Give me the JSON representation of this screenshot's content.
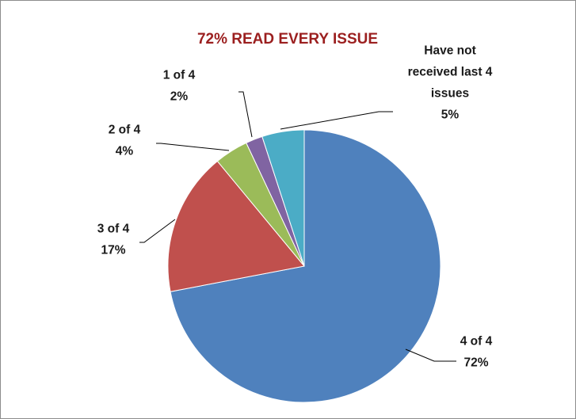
{
  "chart_data": {
    "type": "pie",
    "title": "72% READ EVERY ISSUE",
    "slices": [
      {
        "name": "4 of 4",
        "value": 72,
        "label_lines": [
          "4 of 4"
        ],
        "percent_label": "72%",
        "color": "#4f81bd"
      },
      {
        "name": "3 of 4",
        "value": 17,
        "label_lines": [
          "3 of 4"
        ],
        "percent_label": "17%",
        "color": "#c0504d"
      },
      {
        "name": "2 of 4",
        "value": 4,
        "label_lines": [
          "2 of 4"
        ],
        "percent_label": "4%",
        "color": "#9bbb59"
      },
      {
        "name": "1 of 4",
        "value": 2,
        "label_lines": [
          "1 of 4"
        ],
        "percent_label": "2%",
        "color": "#8064a2"
      },
      {
        "name": "Have not received last 4 issues",
        "value": 5,
        "label_lines": [
          "Have not",
          "received last 4",
          "issues"
        ],
        "percent_label": "5%",
        "color": "#4bacc6"
      }
    ],
    "start_angle": "12 o'clock",
    "direction": "clockwise",
    "legend": "none"
  }
}
